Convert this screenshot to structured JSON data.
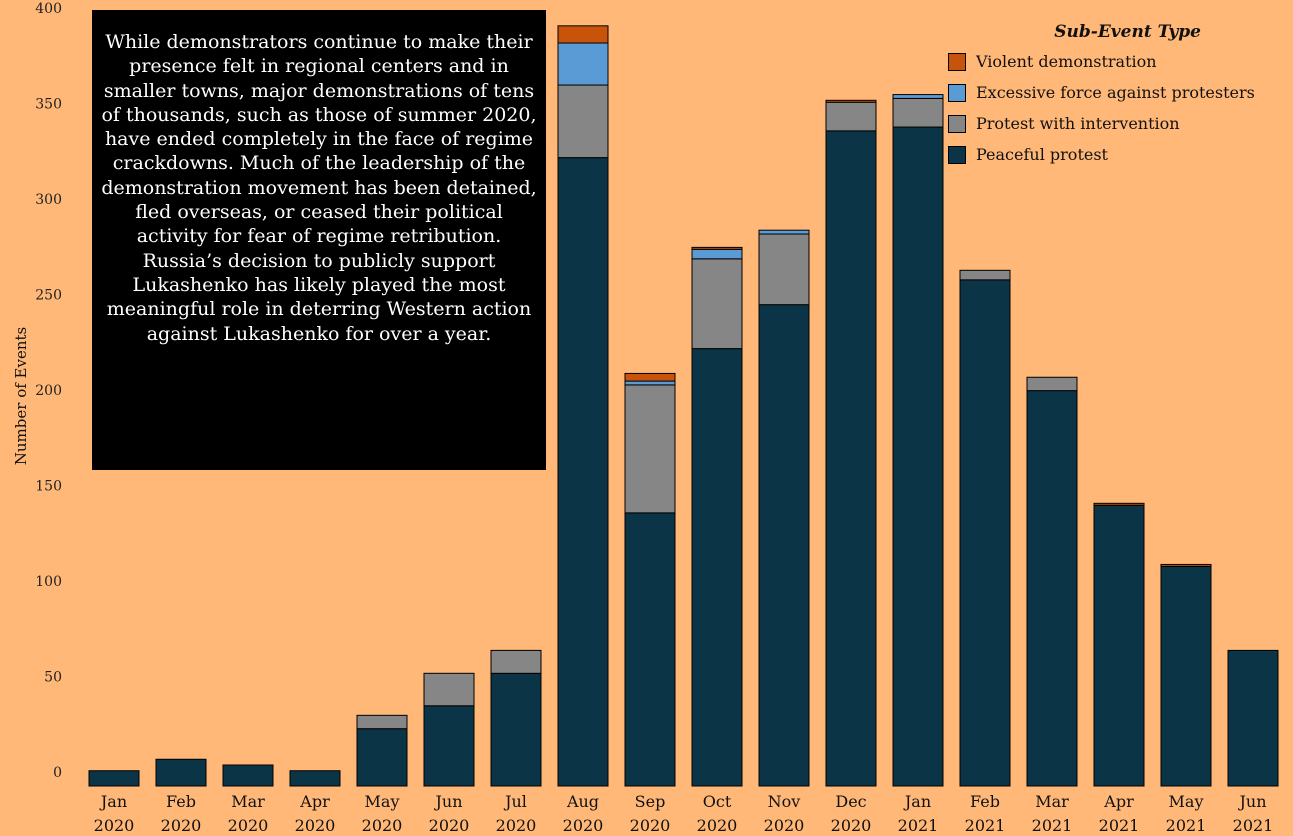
{
  "annotation": {
    "text": "While demonstrators continue to make their presence felt in regional centers and in smaller towns, major demonstrations of tens of thousands, such as those of summer 2020, have ended completely in the face of regime crackdowns. Much of the leadership of the demonstration movement has been detained, fled overseas, or ceased their political activity for fear of regime retribution. Russia’s decision to publicly support Lukashenko has likely played the most meaningful role in deterring Western action against Lukashenko for over a year."
  },
  "legend": {
    "title": "Sub-Event Type",
    "items": [
      {
        "label": "Violent demonstration",
        "color": "#C8540C"
      },
      {
        "label": "Excessive force against protesters",
        "color": "#5B9BD5"
      },
      {
        "label": "Protest with intervention",
        "color": "#868686"
      },
      {
        "label": "Peaceful protest",
        "color": "#0B3546"
      }
    ]
  },
  "chart_data": {
    "type": "bar",
    "stacked": true,
    "ylabel": "Number of Events",
    "ylim": [
      0,
      400
    ],
    "yticks": [
      0,
      50,
      100,
      150,
      200,
      250,
      300,
      350,
      400
    ],
    "categories": [
      [
        "Jan",
        "2020"
      ],
      [
        "Feb",
        "2020"
      ],
      [
        "Mar",
        "2020"
      ],
      [
        "Apr",
        "2020"
      ],
      [
        "May",
        "2020"
      ],
      [
        "Jun",
        "2020"
      ],
      [
        "Jul",
        "2020"
      ],
      [
        "Aug",
        "2020"
      ],
      [
        "Sep",
        "2020"
      ],
      [
        "Oct",
        "2020"
      ],
      [
        "Nov",
        "2020"
      ],
      [
        "Dec",
        "2020"
      ],
      [
        "Jan",
        "2021"
      ],
      [
        "Feb",
        "2021"
      ],
      [
        "Mar",
        "2021"
      ],
      [
        "Apr",
        "2021"
      ],
      [
        "May",
        "2021"
      ],
      [
        "Jun",
        "2021"
      ]
    ],
    "series": [
      {
        "name": "Peaceful protest",
        "color": "#0B3546",
        "values": [
          8,
          14,
          11,
          8,
          30,
          42,
          59,
          329,
          143,
          229,
          252,
          343,
          345,
          265,
          207,
          147,
          115,
          71
        ]
      },
      {
        "name": "Protest with intervention",
        "color": "#868686",
        "values": [
          0,
          0,
          0,
          0,
          7,
          17,
          12,
          38,
          67,
          47,
          37,
          15,
          15,
          5,
          7,
          0,
          0,
          0
        ]
      },
      {
        "name": "Excessive force against protesters",
        "color": "#5B9BD5",
        "values": [
          0,
          0,
          0,
          0,
          0,
          0,
          0,
          22,
          2,
          5,
          2,
          0,
          2,
          0,
          0,
          0,
          0,
          0
        ]
      },
      {
        "name": "Violent demonstration",
        "color": "#C8540C",
        "values": [
          0,
          0,
          0,
          0,
          0,
          0,
          0,
          9,
          4,
          1,
          0,
          1,
          0,
          0,
          0,
          1,
          1,
          0
        ]
      }
    ]
  }
}
